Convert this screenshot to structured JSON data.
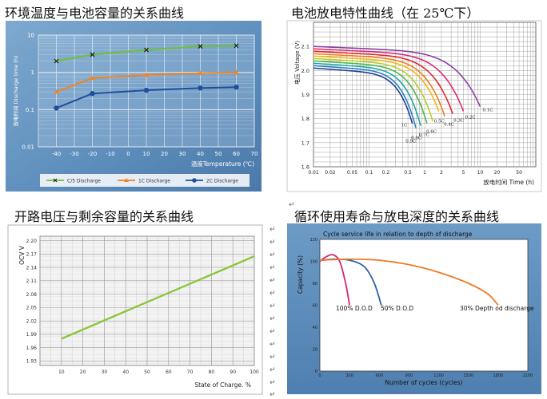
{
  "titles": {
    "t1": "环境温度与电池容量的关系曲线",
    "t2": "电池放电特性曲线（在 25℃下）",
    "t3": "开路电压与剩余容量的关系曲线",
    "t4": "循环使用寿命与放电深度的关系曲线"
  },
  "paragraph_mark": "↵",
  "chart_data": [
    {
      "type": "line",
      "ylabel": "放电时间 Discharge time (h)",
      "xlabel": "温度Temperature (℃)",
      "y_scale": "log",
      "ylim": [
        0.01,
        10
      ],
      "y_ticks": [
        0.01,
        0.1,
        1,
        10
      ],
      "y_tick_labels": [
        "0.01",
        "0.1",
        "1",
        "10"
      ],
      "xlim": [
        -50,
        70
      ],
      "x_ticks": [
        -40,
        -30,
        -20,
        -10,
        0,
        10,
        20,
        30,
        40,
        50,
        60,
        70
      ],
      "x_tick_labels": [
        "-40",
        "-30",
        "-20",
        "-10",
        "0",
        "10",
        "20",
        "30",
        "40",
        "50",
        "60",
        "70"
      ],
      "grid": true,
      "legend_position": "bottom",
      "series": [
        {
          "name": "C/5 Discharge",
          "color": "#6fbf3a",
          "marker": "x",
          "x": [
            -40,
            -20,
            10,
            40,
            60
          ],
          "y": [
            2.0,
            3.0,
            4.0,
            5.0,
            5.2
          ]
        },
        {
          "name": "1C Discharge",
          "color": "#f58220",
          "marker": "triangle",
          "x": [
            -40,
            -20,
            10,
            40,
            60
          ],
          "y": [
            0.3,
            0.7,
            0.85,
            0.95,
            1.0
          ]
        },
        {
          "name": "2C Discharge",
          "color": "#1f4e9c",
          "marker": "circle",
          "x": [
            -40,
            -20,
            10,
            40,
            60
          ],
          "y": [
            0.11,
            0.27,
            0.33,
            0.38,
            0.4
          ]
        }
      ]
    },
    {
      "type": "line",
      "ylabel": "电压 Voltage (V)",
      "xlabel": "放电时间 Time (h)",
      "x_scale": "log",
      "xlim": [
        0.01,
        100
      ],
      "x_ticks": [
        0.01,
        0.02,
        0.05,
        0.1,
        0.2,
        0.5,
        1,
        2,
        5,
        10,
        20,
        50
      ],
      "x_tick_labels": [
        "0.01",
        "0.02",
        "0.05",
        "0.1",
        "0.2",
        "0.5",
        "1",
        "2",
        "5",
        "10",
        "20",
        "50"
      ],
      "ylim": [
        1.6,
        2.2
      ],
      "y_ticks": [
        1.6,
        1.7,
        1.8,
        1.9,
        2.0,
        2.1
      ],
      "y_tick_labels": [
        "1.6",
        "1.7",
        "1.8",
        "1.9",
        "2.0",
        "2.1"
      ],
      "grid": true,
      "series": [
        {
          "name": "0.1C",
          "color": "#8b3fa6",
          "v0": 2.1,
          "end_time": 10,
          "end_voltage": 1.85
        },
        {
          "name": "0.2C",
          "color": "#d82c74",
          "v0": 2.09,
          "end_time": 5,
          "end_voltage": 1.83
        },
        {
          "name": "0.3C",
          "color": "#e4262b",
          "v0": 2.08,
          "end_time": 3.2,
          "end_voltage": 1.82
        },
        {
          "name": "0.4C",
          "color": "#ef7d1a",
          "v0": 2.07,
          "end_time": 2.3,
          "end_voltage": 1.81
        },
        {
          "name": "0.5C",
          "color": "#f2b61c",
          "v0": 2.06,
          "end_time": 1.8,
          "end_voltage": 1.83
        },
        {
          "name": "0.6C",
          "color": "#b8cf2a",
          "v0": 2.05,
          "end_time": 1.4,
          "end_voltage": 1.79
        },
        {
          "name": "0.7C",
          "color": "#4eb549",
          "v0": 2.04,
          "end_time": 1.1,
          "end_voltage": 1.78
        },
        {
          "name": "0.8C",
          "color": "#1ea7a0",
          "v0": 2.03,
          "end_time": 0.85,
          "end_voltage": 1.77
        },
        {
          "name": "0.9C",
          "color": "#2b82c9",
          "v0": 2.02,
          "end_time": 0.7,
          "end_voltage": 1.76
        },
        {
          "name": "1C",
          "color": "#253f8e",
          "v0": 2.01,
          "end_time": 0.6,
          "end_voltage": 1.78
        }
      ]
    },
    {
      "type": "line",
      "ylabel": "OCV V",
      "xlabel": "State of Charge. %",
      "xlim": [
        0,
        100
      ],
      "x_ticks": [
        10,
        20,
        30,
        40,
        50,
        60,
        70,
        80,
        90,
        100
      ],
      "x_tick_labels": [
        "10",
        "20",
        "30",
        "40",
        "50",
        "60",
        "70",
        "80",
        "90",
        "100"
      ],
      "ylim": [
        1.92,
        2.21
      ],
      "y_ticks": [
        1.93,
        1.96,
        1.99,
        2.02,
        2.05,
        2.08,
        2.11,
        2.14,
        2.17,
        2.2
      ],
      "y_tick_labels": [
        "1.93",
        "1.96",
        "1.99",
        "2.02",
        "2.05",
        "2.08",
        "2.11",
        "2.14",
        "2.17",
        "2.20"
      ],
      "grid": true,
      "series": [
        {
          "color": "#8cc63f",
          "x": [
            10,
            100
          ],
          "y": [
            1.98,
            2.165
          ]
        }
      ]
    },
    {
      "type": "line",
      "title": "Cycle service life in relation to depth of discharge",
      "ylabel": "Capacity (%)",
      "xlabel": "Number of cycles (cycles)",
      "xlim": [
        0,
        2100
      ],
      "x_ticks": [
        0,
        300,
        600,
        900,
        1200,
        1500,
        1800,
        2100
      ],
      "x_tick_labels": [
        "0",
        "300",
        "600",
        "900",
        "1200",
        "1500",
        "1800",
        "2100"
      ],
      "ylim": [
        0,
        120
      ],
      "y_ticks": [
        0,
        20,
        40,
        60,
        80,
        100,
        120
      ],
      "y_tick_labels": [
        "0",
        "20",
        "40",
        "60",
        "80",
        "100",
        "120"
      ],
      "grid": false,
      "series": [
        {
          "name": "100% D.O.D",
          "color": "#d6257a",
          "x": [
            0,
            60,
            130,
            200,
            260,
            300
          ],
          "y": [
            100,
            104,
            106,
            100,
            80,
            60
          ]
        },
        {
          "name": "50% D.O.D",
          "color": "#2f5ea8",
          "x": [
            0,
            150,
            300,
            450,
            550,
            620
          ],
          "y": [
            101,
            102,
            101,
            95,
            80,
            60
          ]
        },
        {
          "name": "30% Depth od discharge",
          "color": "#ee7a25",
          "x": [
            0,
            300,
            600,
            900,
            1200,
            1500,
            1700,
            1800
          ],
          "y": [
            101,
            102,
            101,
            97,
            90,
            80,
            70,
            60
          ]
        }
      ]
    }
  ]
}
